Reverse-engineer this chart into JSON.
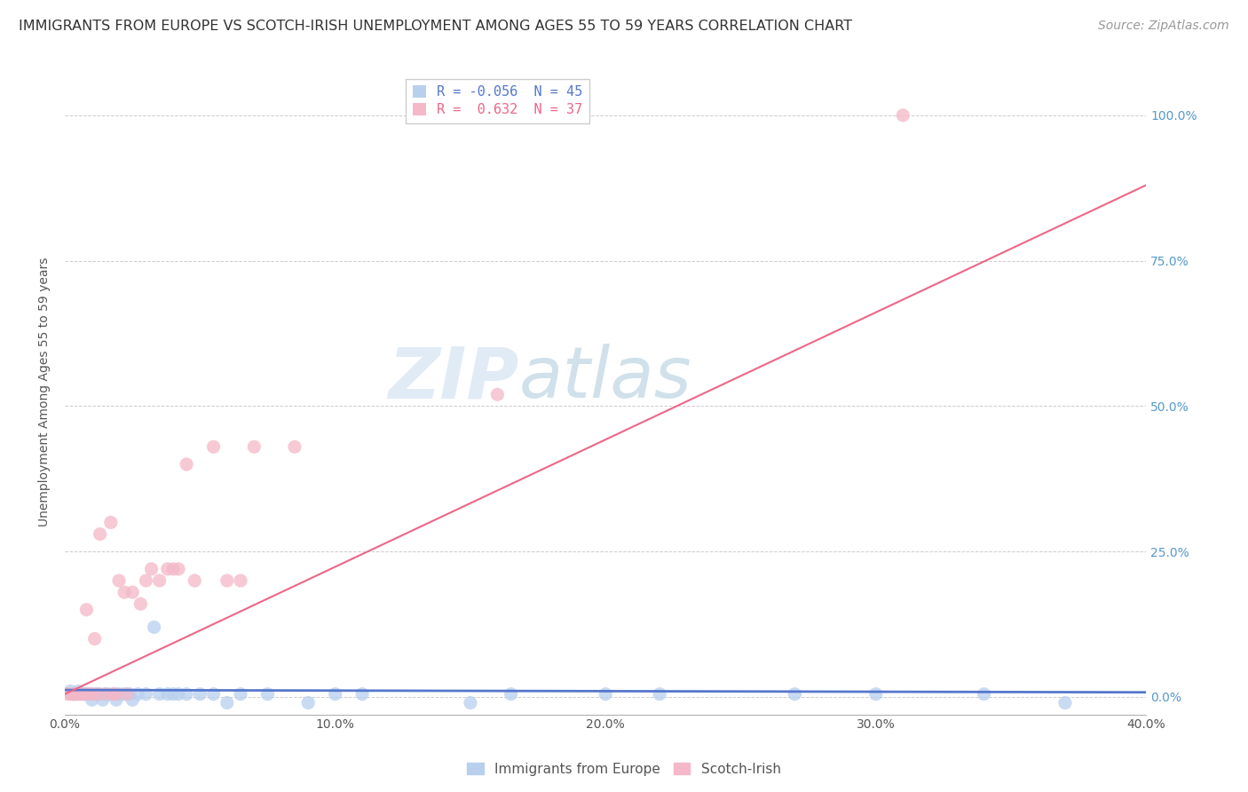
{
  "title": "IMMIGRANTS FROM EUROPE VS SCOTCH-IRISH UNEMPLOYMENT AMONG AGES 55 TO 59 YEARS CORRELATION CHART",
  "source": "Source: ZipAtlas.com",
  "ylabel": "Unemployment Among Ages 55 to 59 years",
  "xlim": [
    0.0,
    0.4
  ],
  "ylim": [
    -0.03,
    1.08
  ],
  "xtick_labels": [
    "0.0%",
    "",
    "10.0%",
    "",
    "20.0%",
    "",
    "30.0%",
    "",
    "40.0%"
  ],
  "xtick_values": [
    0.0,
    0.05,
    0.1,
    0.15,
    0.2,
    0.25,
    0.3,
    0.35,
    0.4
  ],
  "ytick_labels": [
    "0.0%",
    "25.0%",
    "50.0%",
    "75.0%",
    "100.0%"
  ],
  "ytick_values": [
    0.0,
    0.25,
    0.5,
    0.75,
    1.0
  ],
  "blue_scatter_x": [
    0.002,
    0.003,
    0.004,
    0.005,
    0.006,
    0.007,
    0.008,
    0.009,
    0.01,
    0.011,
    0.012,
    0.013,
    0.014,
    0.015,
    0.016,
    0.018,
    0.019,
    0.02,
    0.022,
    0.024,
    0.025,
    0.027,
    0.03,
    0.033,
    0.035,
    0.038,
    0.04,
    0.042,
    0.045,
    0.05,
    0.055,
    0.06,
    0.065,
    0.075,
    0.09,
    0.1,
    0.11,
    0.15,
    0.165,
    0.2,
    0.22,
    0.27,
    0.3,
    0.34,
    0.37
  ],
  "blue_scatter_y": [
    0.01,
    0.005,
    0.005,
    0.01,
    0.005,
    0.005,
    0.005,
    0.005,
    -0.005,
    0.005,
    0.005,
    0.005,
    -0.005,
    0.005,
    0.005,
    0.005,
    -0.005,
    0.005,
    0.005,
    0.005,
    -0.005,
    0.005,
    0.005,
    0.12,
    0.005,
    0.005,
    0.005,
    0.005,
    0.005,
    0.005,
    0.005,
    -0.01,
    0.005,
    0.005,
    -0.01,
    0.005,
    0.005,
    -0.01,
    0.005,
    0.005,
    0.005,
    0.005,
    0.005,
    0.005,
    -0.01
  ],
  "pink_scatter_x": [
    0.001,
    0.002,
    0.003,
    0.004,
    0.005,
    0.006,
    0.007,
    0.008,
    0.009,
    0.01,
    0.011,
    0.012,
    0.013,
    0.015,
    0.017,
    0.018,
    0.019,
    0.02,
    0.022,
    0.023,
    0.025,
    0.028,
    0.03,
    0.032,
    0.035,
    0.038,
    0.04,
    0.042,
    0.045,
    0.048,
    0.055,
    0.06,
    0.065,
    0.07,
    0.085,
    0.16,
    0.31
  ],
  "pink_scatter_y": [
    0.005,
    0.005,
    0.005,
    0.005,
    0.005,
    0.005,
    0.005,
    0.15,
    0.005,
    0.005,
    0.1,
    0.005,
    0.28,
    0.005,
    0.3,
    0.005,
    0.005,
    0.2,
    0.18,
    0.005,
    0.18,
    0.16,
    0.2,
    0.22,
    0.2,
    0.22,
    0.22,
    0.22,
    0.4,
    0.2,
    0.43,
    0.2,
    0.2,
    0.43,
    0.43,
    0.52,
    1.0
  ],
  "blue_line_x0": 0.0,
  "blue_line_x1": 0.4,
  "blue_line_y0": 0.012,
  "blue_line_y1": 0.008,
  "pink_line_x0": 0.0,
  "pink_line_x1": 0.4,
  "pink_line_y0": 0.005,
  "pink_line_y1": 0.88,
  "watermark_zip": "ZIP",
  "watermark_atlas": "atlas",
  "blue_color": "#b8d0ee",
  "pink_color": "#f4b8c8",
  "blue_line_color": "#5577cc",
  "pink_line_color": "#ee6688",
  "title_fontsize": 11.5,
  "source_fontsize": 10,
  "axis_label_fontsize": 10,
  "tick_fontsize": 10,
  "legend_fontsize": 11,
  "marker_size": 120,
  "legend_R_blue": "R = -0.056",
  "legend_N_blue": "N = 45",
  "legend_R_pink": "R =  0.632",
  "legend_N_pink": "N = 37",
  "legend_label_blue": "Immigrants from Europe",
  "legend_label_pink": "Scotch-Irish"
}
